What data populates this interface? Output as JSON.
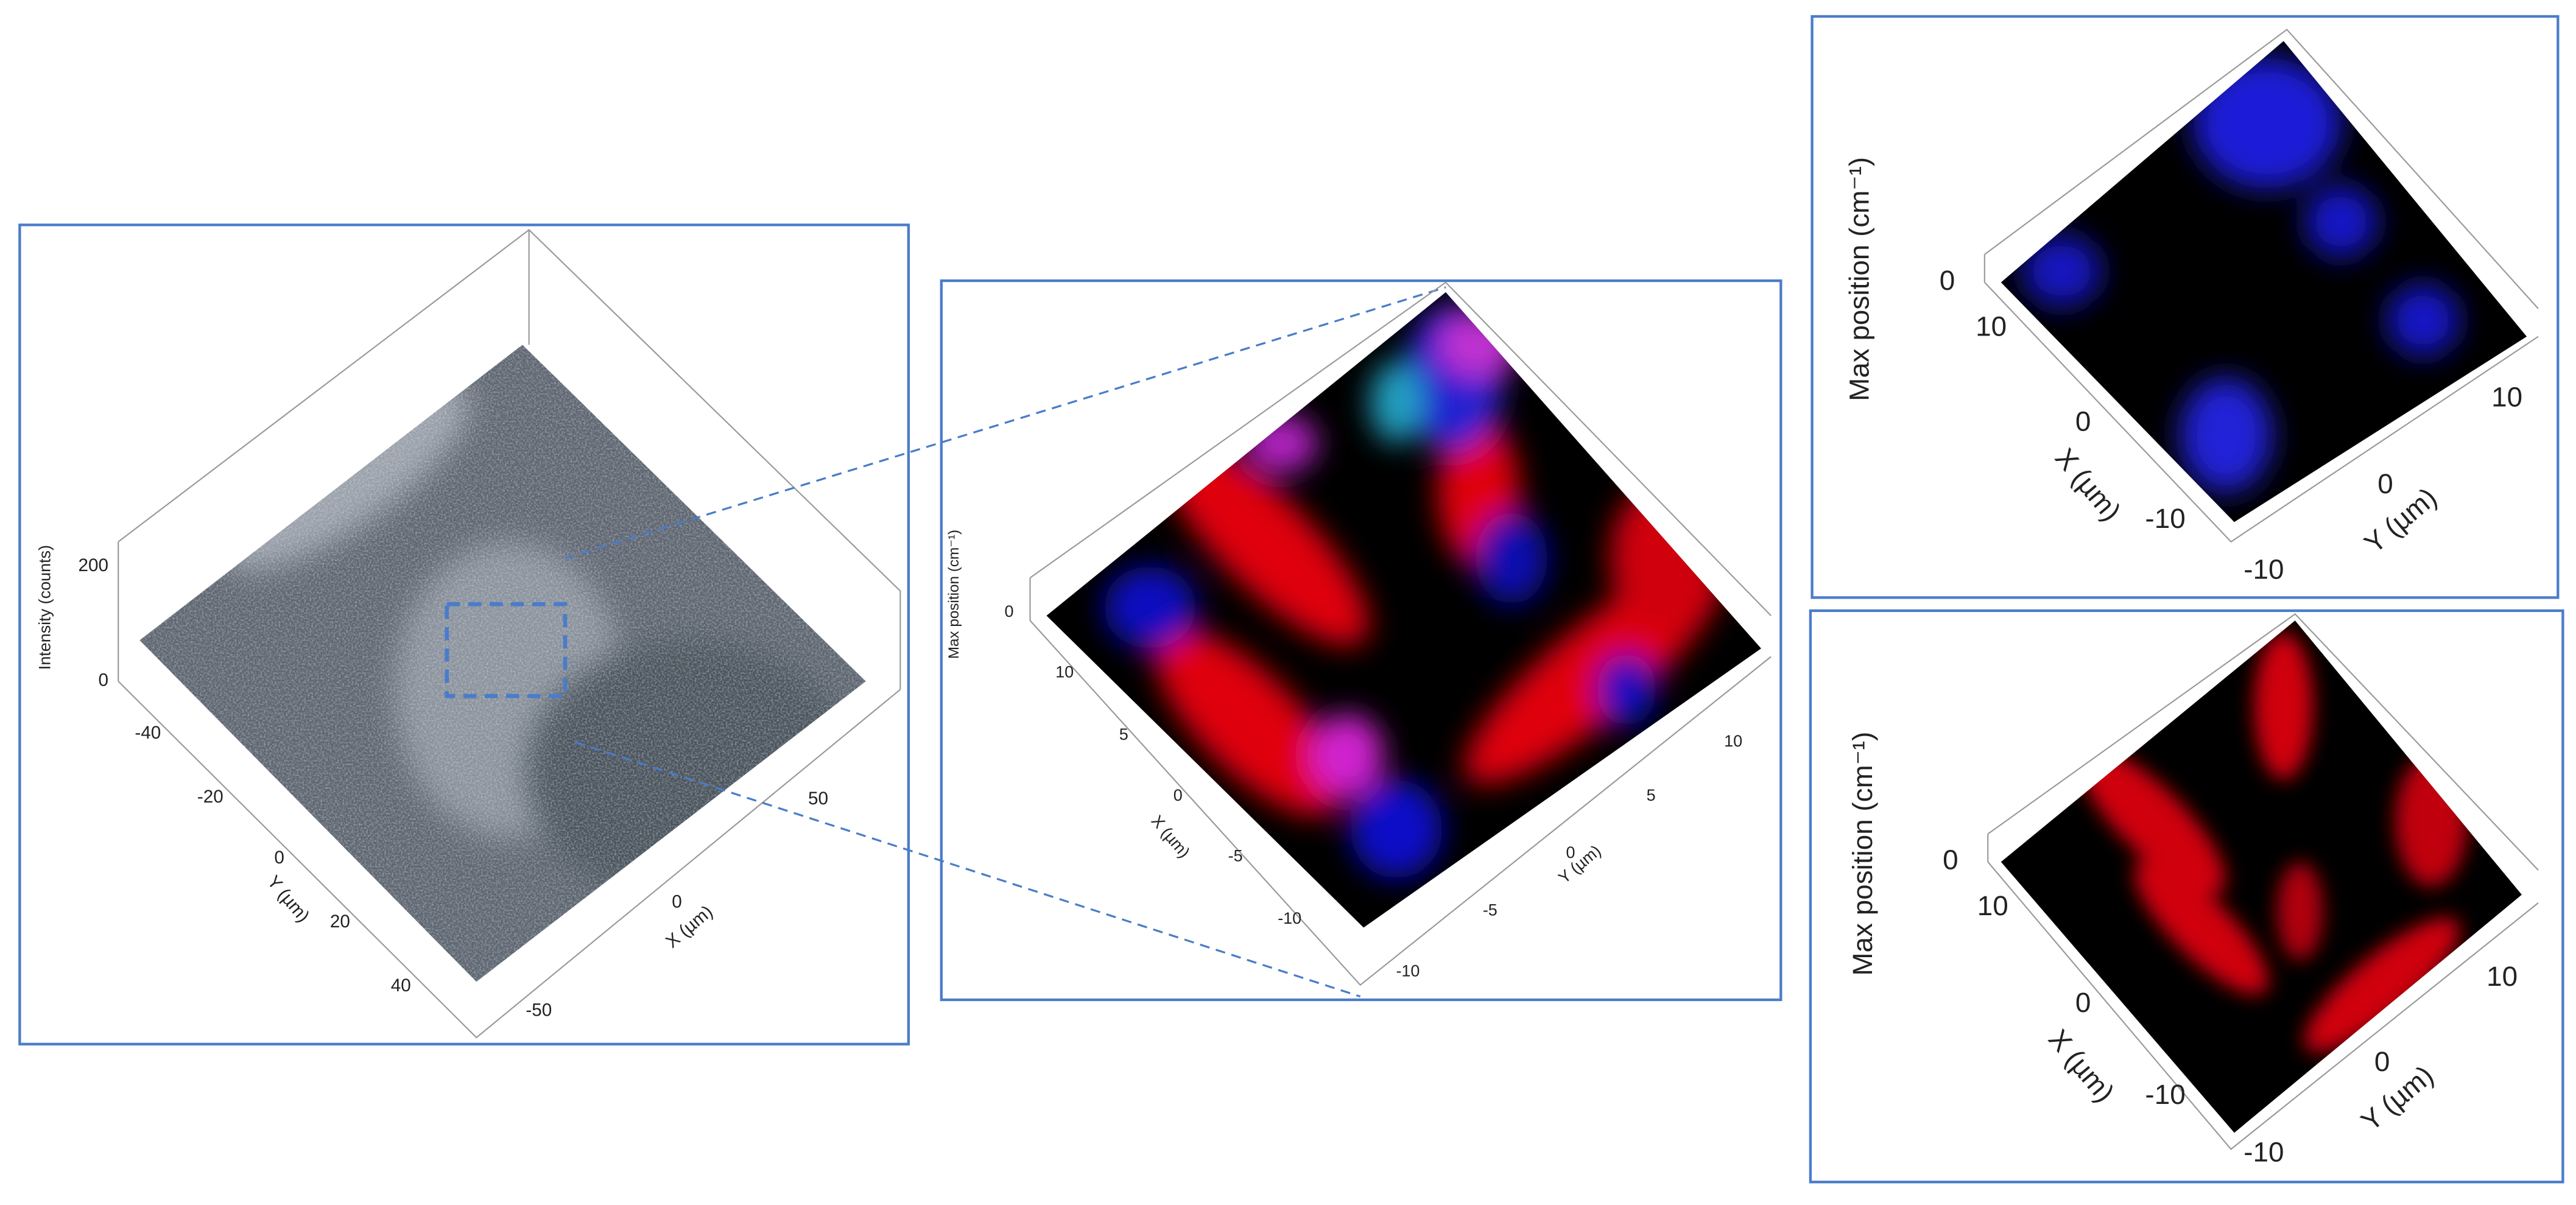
{
  "panels": [
    {
      "z_label": "Intensity (counts)",
      "z_ticks": [
        "0",
        "200"
      ],
      "x_label": "X (µm)",
      "x_ticks": [
        "50",
        "0",
        "-50"
      ],
      "y_label": "Y (µm)",
      "y_ticks": [
        "-40",
        "-20",
        "0",
        "20",
        "40"
      ]
    },
    {
      "z_label": "Max position (cm⁻¹)",
      "z_ticks": [
        "0"
      ],
      "x_label": "X (µm)",
      "x_ticks": [
        "10",
        "5",
        "0",
        "-5",
        "-10"
      ],
      "y_label": "Y (µm)",
      "y_ticks": [
        "10",
        "5",
        "0",
        "-5",
        "-10"
      ]
    },
    {
      "z_label": "Max position (cm⁻¹)",
      "z_ticks": [
        "0"
      ],
      "x_label": "X (µm)",
      "x_ticks": [
        "10",
        "0",
        "-10"
      ],
      "y_label": "Y (µm)",
      "y_ticks": [
        "10",
        "0",
        "-10"
      ]
    },
    {
      "z_label": "Max position (cm⁻¹)",
      "z_ticks": [
        "0"
      ],
      "x_label": "X (µm)",
      "x_ticks": [
        "10",
        "0",
        "-10"
      ],
      "y_label": "Y (µm)",
      "y_ticks": [
        "10",
        "0",
        "-10"
      ]
    }
  ]
}
